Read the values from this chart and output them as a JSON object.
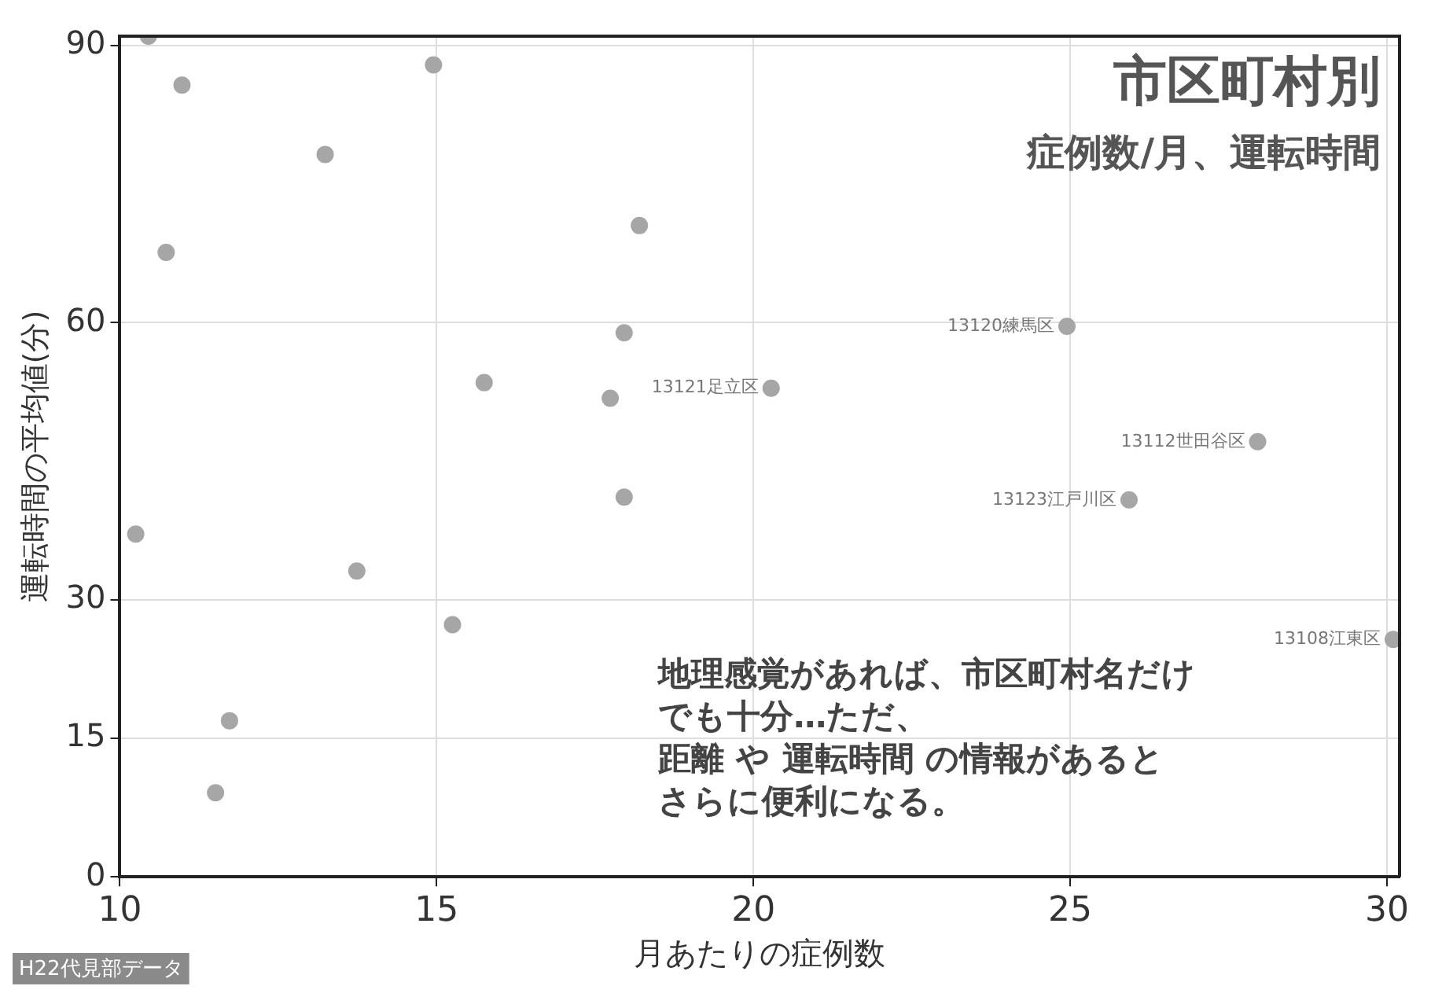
{
  "chart_data": {
    "type": "scatter",
    "title": "市区町村別",
    "subtitle": "症例数/月、運転時間",
    "xlabel": "月あたりの症例数",
    "ylabel": "運転時間の平均値(分)",
    "series": [
      {
        "color": "#a6a6a6",
        "x": [
          10.45,
          10.98,
          13.24,
          10.73,
          14.95,
          18.2,
          17.96,
          15.75,
          17.74,
          20.28,
          17.96,
          10.25,
          13.74,
          15.25,
          11.73,
          11.51,
          24.95,
          27.96,
          25.93,
          30.1
        ],
        "values": [
          91,
          85.7,
          78.2,
          67.6,
          87.9,
          70.5,
          58.9,
          53.5,
          51.8,
          52.9,
          41.1,
          37.1,
          33.1,
          27.3,
          16.9,
          9.1,
          59.6,
          47.1,
          40.8,
          25.7
        ]
      }
    ],
    "xlim": [
      10,
      30.2
    ],
    "xticks": [
      10,
      15,
      20,
      25,
      30
    ],
    "ylim": [
      0,
      91
    ],
    "yticks": [
      0,
      15,
      30,
      60,
      90
    ],
    "grid": true,
    "marker": "circle",
    "annotations": [
      {
        "text": "13121足立区",
        "x": 20.28,
        "y": 52.9
      },
      {
        "text": "13120練馬区",
        "x": 24.95,
        "y": 59.6
      },
      {
        "text": "13112世田谷区",
        "x": 27.96,
        "y": 47.1
      },
      {
        "text": "13123江戸川区",
        "x": 25.93,
        "y": 40.8
      },
      {
        "text": "13108江東区",
        "x": 30.1,
        "y": 25.7
      },
      "地理感覚があれば、市区町村名だけ",
      "でも十分…ただ、",
      "距離 や 運転時間 の情報があると",
      "さらに便利になる。",
      "H22代見部データ"
    ]
  }
}
